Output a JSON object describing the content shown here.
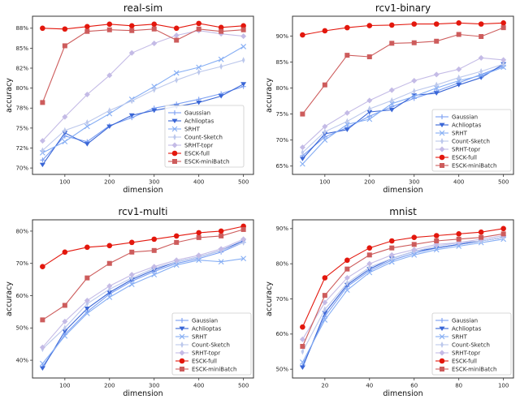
{
  "figure": {
    "background": "#ffffff",
    "text_color": "#262626",
    "spine_color": "#333333"
  },
  "chart_data": [
    {
      "type": "line",
      "title": "real-sim",
      "xlabel": "dimension",
      "ylabel": "accuracy",
      "x": [
        50,
        100,
        150,
        200,
        250,
        300,
        350,
        400,
        450,
        500
      ],
      "xlim": [
        27.5,
        522.5
      ],
      "ylim": [
        69.2,
        89.0
      ],
      "grid": false,
      "legend": "right",
      "xticks": [
        {
          "v": 100,
          "label": "100"
        },
        {
          "v": 200,
          "label": "200"
        },
        {
          "v": 300,
          "label": "300"
        },
        {
          "v": 400,
          "label": "400"
        },
        {
          "v": 500,
          "label": "500"
        }
      ],
      "yticks": [
        {
          "v": 70,
          "label": "70%"
        },
        {
          "v": 72.5,
          "label": "72%"
        },
        {
          "v": 75,
          "label": "75%"
        },
        {
          "v": 77.5,
          "label": "78%"
        },
        {
          "v": 80,
          "label": "80%"
        },
        {
          "v": 82.5,
          "label": "82%"
        },
        {
          "v": 85,
          "label": "85%"
        },
        {
          "v": 87.5,
          "label": "88%"
        }
      ],
      "series": [
        {
          "name": "Gaussian",
          "color": "#7b9ff2",
          "marker": "plus",
          "values": [
            71.0,
            74.0,
            73.3,
            75.3,
            76.3,
            77.5,
            78.0,
            78.6,
            79.3,
            80.2
          ]
        },
        {
          "name": "Achlioptas",
          "color": "#3a66d6",
          "marker": "triangle-down",
          "values": [
            70.4,
            74.4,
            73.0,
            75.2,
            76.6,
            77.2,
            77.7,
            78.2,
            79.0,
            80.5
          ]
        },
        {
          "name": "SRHT",
          "color": "#86aef4",
          "marker": "x",
          "values": [
            71.9,
            73.3,
            75.2,
            76.8,
            78.6,
            80.2,
            81.9,
            82.6,
            83.6,
            85.2
          ]
        },
        {
          "name": "Count-Sketch",
          "color": "#bcc8ec",
          "marker": "thin-diamond",
          "values": [
            72.2,
            74.7,
            75.7,
            77.2,
            78.4,
            79.8,
            81.0,
            82.0,
            82.7,
            83.5
          ]
        },
        {
          "name": "SRHT-topr",
          "color": "#c4bbe6",
          "marker": "diamond",
          "values": [
            73.4,
            76.4,
            79.2,
            81.6,
            84.4,
            85.6,
            86.6,
            87.2,
            86.8,
            86.5
          ]
        },
        {
          "name": "ESCK-full",
          "color": "#e3170d",
          "marker": "circle",
          "values": [
            87.5,
            87.4,
            87.7,
            88.0,
            87.8,
            88.0,
            87.5,
            88.1,
            87.6,
            87.8
          ]
        },
        {
          "name": "ESCK-miniBatch",
          "color": "#cd5c5c",
          "marker": "square",
          "values": [
            78.2,
            85.3,
            87.1,
            87.3,
            87.2,
            87.4,
            86.0,
            87.4,
            87.1,
            87.3
          ]
        }
      ]
    },
    {
      "type": "line",
      "title": "rcv1-binary",
      "xlabel": "dimension",
      "ylabel": "accuracy",
      "x": [
        50,
        100,
        150,
        200,
        250,
        300,
        350,
        400,
        450,
        500
      ],
      "xlim": [
        27.5,
        522.5
      ],
      "ylim": [
        63.4,
        93.8
      ],
      "grid": false,
      "legend": "lower-right",
      "xticks": [
        {
          "v": 100,
          "label": "100"
        },
        {
          "v": 200,
          "label": "200"
        },
        {
          "v": 300,
          "label": "300"
        },
        {
          "v": 400,
          "label": "400"
        },
        {
          "v": 500,
          "label": "500"
        }
      ],
      "yticks": [
        {
          "v": 65,
          "label": "65%"
        },
        {
          "v": 70,
          "label": "70%"
        },
        {
          "v": 75,
          "label": "75%"
        },
        {
          "v": 80,
          "label": "80%"
        },
        {
          "v": 85,
          "label": "85%"
        },
        {
          "v": 90,
          "label": "90%"
        }
      ],
      "series": [
        {
          "name": "Gaussian",
          "color": "#7b9ff2",
          "marker": "plus",
          "values": [
            67.0,
            70.6,
            72.4,
            74.6,
            76.4,
            78.0,
            79.4,
            81.0,
            82.6,
            84.2
          ]
        },
        {
          "name": "Achlioptas",
          "color": "#3a66d6",
          "marker": "triangle-down",
          "values": [
            66.4,
            71.2,
            72.0,
            75.4,
            75.8,
            78.6,
            79.0,
            80.6,
            82.0,
            84.6
          ]
        },
        {
          "name": "SRHT",
          "color": "#86aef4",
          "marker": "x",
          "values": [
            65.4,
            70.0,
            73.0,
            74.0,
            77.0,
            78.4,
            80.0,
            81.4,
            82.4,
            84.0
          ]
        },
        {
          "name": "Count-Sketch",
          "color": "#bcc8ec",
          "marker": "thin-diamond",
          "values": [
            67.6,
            71.6,
            73.6,
            76.0,
            77.6,
            79.4,
            80.6,
            82.0,
            83.2,
            84.6
          ]
        },
        {
          "name": "SRHT-topr",
          "color": "#c4bbe6",
          "marker": "diamond",
          "values": [
            68.6,
            72.6,
            75.2,
            77.6,
            79.6,
            81.4,
            82.6,
            83.6,
            85.8,
            85.4
          ]
        },
        {
          "name": "ESCK-full",
          "color": "#e3170d",
          "marker": "circle",
          "values": [
            90.2,
            91.0,
            91.6,
            92.0,
            92.1,
            92.3,
            92.3,
            92.5,
            92.3,
            92.5
          ]
        },
        {
          "name": "ESCK-miniBatch",
          "color": "#cd5c5c",
          "marker": "square",
          "values": [
            75.0,
            80.6,
            86.3,
            86.0,
            88.6,
            88.7,
            89.0,
            90.3,
            89.9,
            91.6
          ]
        }
      ]
    },
    {
      "type": "line",
      "title": "rcv1-multi",
      "xlabel": "dimension",
      "ylabel": "accuracy",
      "x": [
        50,
        100,
        150,
        200,
        250,
        300,
        350,
        400,
        450,
        500
      ],
      "xlim": [
        27.5,
        522.5
      ],
      "ylim": [
        34.5,
        83.5
      ],
      "grid": false,
      "legend": "lower-right",
      "xticks": [
        {
          "v": 100,
          "label": "100"
        },
        {
          "v": 200,
          "label": "200"
        },
        {
          "v": 300,
          "label": "300"
        },
        {
          "v": 400,
          "label": "400"
        },
        {
          "v": 500,
          "label": "500"
        }
      ],
      "yticks": [
        {
          "v": 40,
          "label": "40%"
        },
        {
          "v": 50,
          "label": "50%"
        },
        {
          "v": 60,
          "label": "60%"
        },
        {
          "v": 70,
          "label": "70%"
        },
        {
          "v": 80,
          "label": "80%"
        }
      ],
      "series": [
        {
          "name": "Gaussian",
          "color": "#7b9ff2",
          "marker": "plus",
          "values": [
            38.0,
            48.0,
            55.0,
            60.5,
            64.5,
            67.5,
            70.0,
            71.5,
            73.5,
            76.5
          ]
        },
        {
          "name": "Achlioptas",
          "color": "#3a66d6",
          "marker": "triangle-down",
          "values": [
            37.5,
            49.0,
            56.0,
            61.0,
            65.0,
            68.0,
            70.5,
            72.0,
            74.0,
            77.0
          ]
        },
        {
          "name": "SRHT",
          "color": "#86aef4",
          "marker": "x",
          "values": [
            39.0,
            47.5,
            54.5,
            59.5,
            63.5,
            66.5,
            69.5,
            71.0,
            70.5,
            71.5
          ]
        },
        {
          "name": "Count-Sketch",
          "color": "#bcc8ec",
          "marker": "thin-diamond",
          "values": [
            43.5,
            50.0,
            57.5,
            62.0,
            65.5,
            68.5,
            70.5,
            72.0,
            74.0,
            76.5
          ]
        },
        {
          "name": "SRHT-topr",
          "color": "#c4bbe6",
          "marker": "diamond",
          "values": [
            44.0,
            52.0,
            58.5,
            63.0,
            66.5,
            69.0,
            71.0,
            72.5,
            74.5,
            77.5
          ]
        },
        {
          "name": "ESCK-full",
          "color": "#e3170d",
          "marker": "circle",
          "values": [
            69.0,
            73.5,
            75.0,
            75.5,
            76.5,
            77.5,
            78.5,
            79.5,
            80.0,
            81.5
          ]
        },
        {
          "name": "ESCK-miniBatch",
          "color": "#cd5c5c",
          "marker": "square",
          "values": [
            52.5,
            57.0,
            65.5,
            70.0,
            73.5,
            74.0,
            76.5,
            78.0,
            78.5,
            80.5
          ]
        }
      ]
    },
    {
      "type": "line",
      "title": "mnist",
      "xlabel": "dimension",
      "ylabel": "accuracy",
      "x": [
        10,
        20,
        30,
        40,
        50,
        60,
        70,
        80,
        90,
        100
      ],
      "xlim": [
        5.5,
        104.5
      ],
      "ylim": [
        47.5,
        92.5
      ],
      "grid": false,
      "legend": "lower-right",
      "xticks": [
        {
          "v": 20,
          "label": "20"
        },
        {
          "v": 40,
          "label": "40"
        },
        {
          "v": 60,
          "label": "60"
        },
        {
          "v": 80,
          "label": "80"
        },
        {
          "v": 100,
          "label": "100"
        }
      ],
      "yticks": [
        {
          "v": 50,
          "label": "50%"
        },
        {
          "v": 60,
          "label": "60%"
        },
        {
          "v": 70,
          "label": "70%"
        },
        {
          "v": 80,
          "label": "80%"
        },
        {
          "v": 90,
          "label": "90%"
        }
      ],
      "series": [
        {
          "name": "Gaussian",
          "color": "#7b9ff2",
          "marker": "plus",
          "values": [
            51.0,
            65.0,
            73.5,
            78.0,
            81.0,
            83.0,
            84.5,
            85.5,
            86.5,
            87.5
          ]
        },
        {
          "name": "Achlioptas",
          "color": "#3a66d6",
          "marker": "triangle-down",
          "values": [
            50.5,
            66.0,
            74.0,
            78.5,
            81.5,
            83.5,
            84.5,
            85.5,
            86.5,
            87.5
          ]
        },
        {
          "name": "SRHT",
          "color": "#86aef4",
          "marker": "x",
          "values": [
            52.0,
            64.0,
            72.5,
            77.5,
            80.5,
            82.5,
            84.0,
            85.0,
            86.0,
            87.0
          ]
        },
        {
          "name": "Count-Sketch",
          "color": "#bcc8ec",
          "marker": "thin-diamond",
          "values": [
            55.0,
            67.0,
            74.5,
            79.0,
            81.5,
            83.5,
            85.0,
            86.0,
            86.5,
            87.5
          ]
        },
        {
          "name": "SRHT-topr",
          "color": "#c4bbe6",
          "marker": "diamond",
          "values": [
            58.5,
            69.0,
            76.0,
            80.0,
            82.5,
            84.0,
            85.5,
            86.0,
            87.0,
            88.0
          ]
        },
        {
          "name": "ESCK-full",
          "color": "#e3170d",
          "marker": "circle",
          "values": [
            62.0,
            76.0,
            81.0,
            84.5,
            86.5,
            87.5,
            88.0,
            88.5,
            89.0,
            90.0
          ]
        },
        {
          "name": "ESCK-miniBatch",
          "color": "#cd5c5c",
          "marker": "square",
          "values": [
            56.5,
            71.0,
            78.5,
            82.5,
            84.5,
            85.5,
            86.5,
            87.0,
            87.5,
            88.5
          ]
        }
      ]
    }
  ]
}
